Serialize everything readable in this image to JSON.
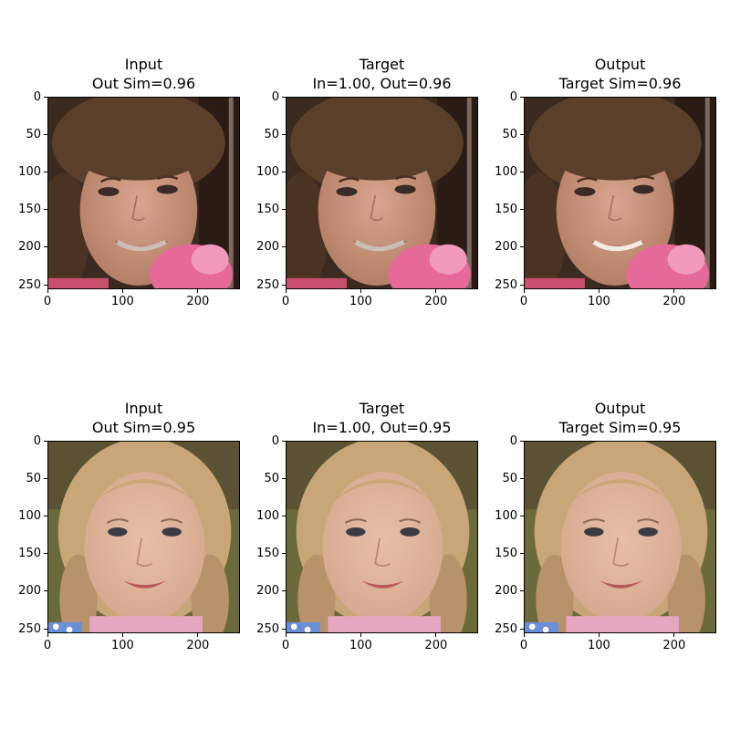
{
  "figure": {
    "rows": [
      {
        "panels": [
          {
            "title": "Input",
            "subtitle": "Out Sim=0.96",
            "image": "face-girl-braces-dark-hair"
          },
          {
            "title": "Target",
            "subtitle": "In=1.00, Out=0.96",
            "image": "face-girl-braces-dark-hair"
          },
          {
            "title": "Output",
            "subtitle": "Target Sim=0.96",
            "image": "face-girl-braces-dark-hair-output"
          }
        ]
      },
      {
        "panels": [
          {
            "title": "Input",
            "subtitle": "Out Sim=0.95",
            "image": "face-girl-blonde-braids"
          },
          {
            "title": "Target",
            "subtitle": "In=1.00, Out=0.95",
            "image": "face-girl-blonde-braids"
          },
          {
            "title": "Output",
            "subtitle": "Target Sim=0.95",
            "image": "face-girl-blonde-braids-output"
          }
        ]
      }
    ]
  },
  "chart_data": {
    "type": "image-grid",
    "axes": {
      "xticks": [
        0,
        100,
        200
      ],
      "yticks": [
        0,
        50,
        100,
        150,
        200,
        250
      ],
      "xlim": [
        0,
        256
      ],
      "ylim": [
        256,
        0
      ],
      "y_inverted": true
    },
    "similarity": [
      {
        "row": 1,
        "input_out_sim": 0.96,
        "target_in": 1.0,
        "target_out": 0.96,
        "output_target_sim": 0.96
      },
      {
        "row": 2,
        "input_out_sim": 0.95,
        "target_in": 1.0,
        "target_out": 0.95,
        "output_target_sim": 0.95
      }
    ],
    "palette": {
      "row1": {
        "bg": "#3a2a20",
        "hair": "#5a3f2a",
        "skin": "#d9a58e",
        "flowers": "#e56a9a",
        "shirt": "#c94f6e"
      },
      "row2": {
        "bg": "#6b6a3a",
        "hair": "#c8a678",
        "skin": "#e8bfa6",
        "shirt": "#e7a6c0",
        "eyes": "#3b3b44"
      }
    }
  }
}
